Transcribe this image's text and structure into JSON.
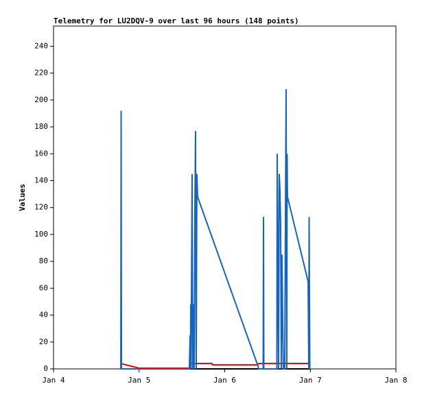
{
  "chart_data": {
    "type": "line",
    "title": "Telemetry for LU2DQV-9 over last 96 hours (148 points)",
    "y_label": "Values",
    "xlim": [
      4,
      8
    ],
    "xticks": [
      {
        "value": 4,
        "label": "Jan 4"
      },
      {
        "value": 5,
        "label": "Jan 5"
      },
      {
        "value": 6,
        "label": "Jan 6"
      },
      {
        "value": 7,
        "label": "Jan 7"
      },
      {
        "value": 8,
        "label": "Jan 8"
      }
    ],
    "ylim": [
      0,
      255
    ],
    "yticks": [
      0,
      20,
      40,
      60,
      80,
      100,
      120,
      140,
      160,
      180,
      200,
      220,
      240
    ],
    "grid": false,
    "series": [
      {
        "color": "#000000",
        "x": [
          4.786,
          6.994
        ],
        "values": [
          0,
          0
        ]
      },
      {
        "color": "#e00000",
        "x": [
          4.786,
          5.0,
          5.587,
          5.595,
          5.85,
          5.86,
          6.38,
          6.4,
          6.994
        ],
        "values": [
          4,
          0.5,
          0.5,
          4,
          4,
          3,
          3,
          4,
          4
        ]
      },
      {
        "color": "#1565c0",
        "x": [
          4.786,
          4.79,
          4.794,
          5.587,
          5.595,
          5.599,
          5.603,
          5.607,
          5.619,
          5.627,
          5.635,
          5.643,
          5.651,
          5.659,
          5.667,
          5.675,
          5.683,
          6.389,
          6.397,
          6.449,
          6.453,
          6.457,
          6.609,
          6.613,
          6.621,
          6.629,
          6.637,
          6.645,
          6.653,
          6.661,
          6.669,
          6.677,
          6.685,
          6.701,
          6.709,
          6.717,
          6.725,
          6.729,
          6.733,
          6.974,
          6.982,
          6.986,
          6.99,
          6.994
        ],
        "values": [
          0,
          192,
          0,
          0,
          25,
          0,
          48,
          0,
          145,
          0,
          48,
          0,
          113,
          177,
          0,
          145,
          128,
          2,
          0,
          0,
          113,
          0,
          0,
          160,
          80,
          0,
          145,
          133,
          108,
          0,
          85,
          36,
          0,
          0,
          105,
          208,
          0,
          160,
          128,
          65,
          0,
          113,
          57,
          0
        ]
      }
    ]
  }
}
